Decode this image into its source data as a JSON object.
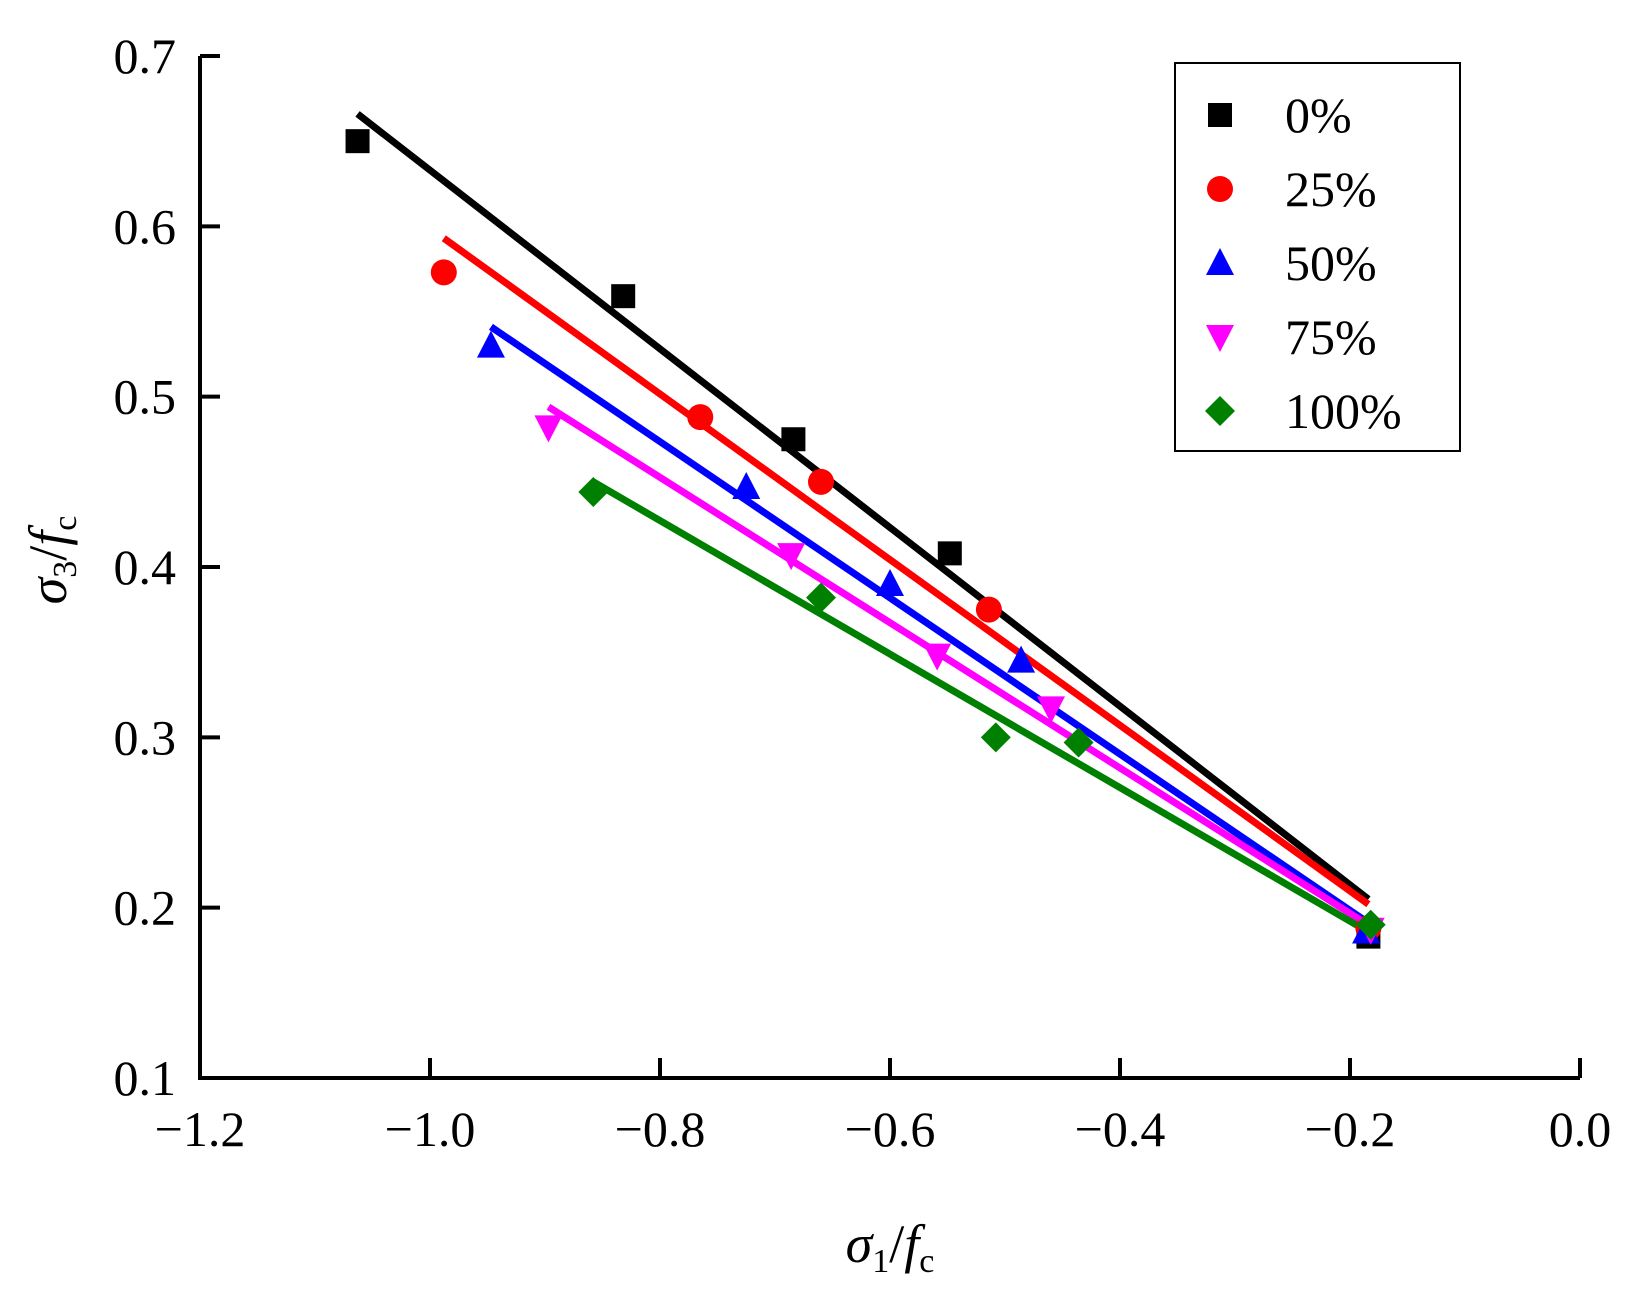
{
  "chart_data": {
    "type": "scatter",
    "xlabel": "σ1/fc",
    "ylabel": "σ3/fc",
    "xlabel_parts": {
      "base": "σ",
      "sub": "1",
      "slash": "/",
      "f": "f",
      "fsub": "c"
    },
    "ylabel_parts": {
      "base": "σ",
      "sub": "3",
      "slash": "/",
      "f": "f",
      "fsub": "c"
    },
    "xlim": [
      -1.2,
      0.0
    ],
    "ylim": [
      0.1,
      0.7
    ],
    "x_ticks": [
      -1.2,
      -1.0,
      -0.8,
      -0.6,
      -0.4,
      -0.2,
      0.0
    ],
    "x_tick_labels": [
      "−1.2",
      "−1.0",
      "−0.8",
      "−0.6",
      "−0.4",
      "−0.2",
      "0.0"
    ],
    "y_ticks": [
      0.1,
      0.2,
      0.3,
      0.4,
      0.5,
      0.6,
      0.7
    ],
    "y_tick_labels": [
      "0.1",
      "0.2",
      "0.3",
      "0.4",
      "0.5",
      "0.6",
      "0.7"
    ],
    "grid": false,
    "legend_position": "top-right",
    "series": [
      {
        "name": "0%",
        "color": "#000000",
        "marker": "square",
        "points": [
          [
            -1.063,
            0.65
          ],
          [
            -0.832,
            0.559
          ],
          [
            -0.684,
            0.475
          ],
          [
            -0.548,
            0.408
          ],
          [
            -0.184,
            0.183
          ]
        ],
        "fit": [
          [
            -1.063,
            0.666
          ],
          [
            -0.184,
            0.205
          ]
        ]
      },
      {
        "name": "25%",
        "color": "#ff0000",
        "marker": "circle",
        "points": [
          [
            -0.988,
            0.573
          ],
          [
            -0.765,
            0.488
          ],
          [
            -0.66,
            0.45
          ],
          [
            -0.514,
            0.375
          ],
          [
            -0.184,
            0.188
          ]
        ],
        "fit": [
          [
            -0.988,
            0.593
          ],
          [
            -0.184,
            0.202
          ]
        ]
      },
      {
        "name": "50%",
        "color": "#0000ff",
        "marker": "triangle-up",
        "points": [
          [
            -0.947,
            0.53
          ],
          [
            -0.725,
            0.447
          ],
          [
            -0.6,
            0.39
          ],
          [
            -0.486,
            0.345
          ],
          [
            -0.186,
            0.186
          ]
        ],
        "fit": [
          [
            -0.947,
            0.541
          ],
          [
            -0.186,
            0.192
          ]
        ]
      },
      {
        "name": "75%",
        "color": "#ff00ff",
        "marker": "triangle-down",
        "points": [
          [
            -0.897,
            0.482
          ],
          [
            -0.686,
            0.407
          ],
          [
            -0.559,
            0.348
          ],
          [
            -0.46,
            0.317
          ],
          [
            -0.182,
            0.187
          ]
        ],
        "fit": [
          [
            -0.897,
            0.494
          ],
          [
            -0.182,
            0.189
          ]
        ]
      },
      {
        "name": "100%",
        "color": "#008000",
        "marker": "diamond",
        "points": [
          [
            -0.858,
            0.444
          ],
          [
            -0.66,
            0.382
          ],
          [
            -0.508,
            0.3
          ],
          [
            -0.436,
            0.297
          ],
          [
            -0.182,
            0.19
          ]
        ],
        "fit": [
          [
            -0.858,
            0.45
          ],
          [
            -0.182,
            0.185
          ]
        ]
      }
    ]
  }
}
